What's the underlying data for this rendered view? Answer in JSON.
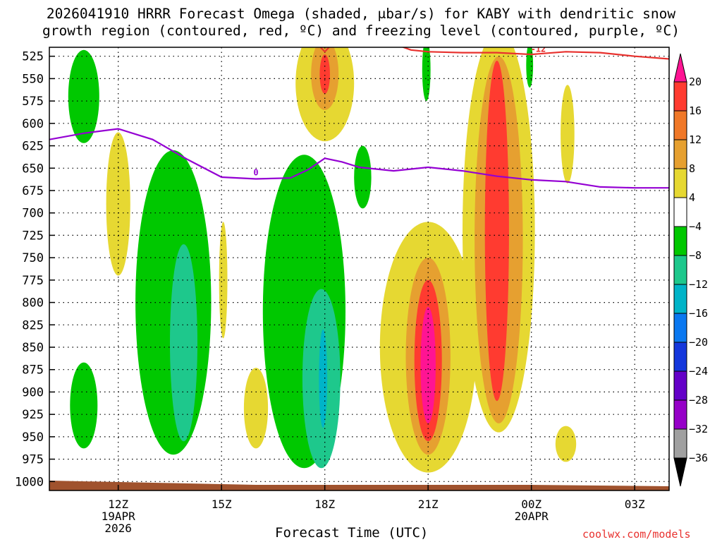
{
  "chart_data": {
    "type": "time-height contour",
    "title_line1": "2026041910 HRRR Forecast Omega (shaded, μbar/s) for KABY with dendritic snow",
    "title_line2": "growth region (contoured, red, ºC) and freezing level (contoured, purple, ºC)",
    "xlabel": "Forecast Time (UTC)",
    "credit": "coolwx.com/models",
    "x_range_hours": [
      10,
      28
    ],
    "y_range_mb": [
      1010,
      515
    ],
    "y_ticks": [
      "525",
      "550",
      "575",
      "600",
      "625",
      "650",
      "675",
      "700",
      "725",
      "750",
      "775",
      "800",
      "825",
      "850",
      "875",
      "900",
      "925",
      "950",
      "975",
      "1000"
    ],
    "x_ticks": [
      {
        "hour": 12,
        "label": "12Z",
        "sub1": "19APR",
        "sub2": "2026"
      },
      {
        "hour": 15,
        "label": "15Z",
        "sub1": "",
        "sub2": ""
      },
      {
        "hour": 18,
        "label": "18Z",
        "sub1": "",
        "sub2": ""
      },
      {
        "hour": 21,
        "label": "21Z",
        "sub1": "",
        "sub2": ""
      },
      {
        "hour": 24,
        "label": "00Z",
        "sub1": "20APR",
        "sub2": ""
      },
      {
        "hour": 27,
        "label": "03Z",
        "sub1": "",
        "sub2": ""
      }
    ],
    "colorbar": {
      "labels": [
        "20",
        "16",
        "12",
        "8",
        "4",
        "−4",
        "−8",
        "−12",
        "−16",
        "−20",
        "−24",
        "−28",
        "−32",
        "−36"
      ],
      "colors": [
        "#ff1493",
        "#ff3b30",
        "#f07828",
        "#e6a030",
        "#e6d832",
        "#ffffff",
        "#00c800",
        "#1ec88c",
        "#00b4c8",
        "#0a78f0",
        "#1437dc",
        "#6400c8",
        "#9600c8",
        "#a0a0a0",
        "#000000"
      ]
    },
    "freezing_level": {
      "label": "0",
      "points": [
        [
          10,
          618
        ],
        [
          11,
          611
        ],
        [
          12,
          606
        ],
        [
          13,
          618
        ],
        [
          14,
          640
        ],
        [
          15,
          660
        ],
        [
          16,
          662
        ],
        [
          17,
          661
        ],
        [
          17.5,
          652
        ],
        [
          18,
          639
        ],
        [
          18.5,
          643
        ],
        [
          19,
          649
        ],
        [
          20,
          653
        ],
        [
          21,
          649
        ],
        [
          22,
          653
        ],
        [
          23,
          659
        ],
        [
          24,
          663
        ],
        [
          25,
          665
        ],
        [
          26,
          671
        ],
        [
          27,
          672
        ],
        [
          28,
          672
        ]
      ]
    },
    "dgz_minus12": {
      "label": "-12",
      "points": [
        [
          20,
          511
        ],
        [
          20.5,
          518
        ],
        [
          21,
          520
        ],
        [
          22,
          521
        ],
        [
          23,
          521
        ],
        [
          24,
          523
        ],
        [
          25,
          520
        ],
        [
          26,
          521
        ],
        [
          27,
          525
        ],
        [
          28,
          528
        ]
      ]
    },
    "omega_regions": [
      {
        "value": -6,
        "center": [
          11.0,
          570
        ],
        "halfwidth_h": 0.45,
        "halfheight_mb": 52
      },
      {
        "value": -6,
        "center": [
          11.0,
          915
        ],
        "halfwidth_h": 0.4,
        "halfheight_mb": 48
      },
      {
        "value": -6,
        "center": [
          13.6,
          800
        ],
        "halfwidth_h": 1.1,
        "halfheight_mb": 170
      },
      {
        "value": -10,
        "center": [
          13.9,
          845
        ],
        "halfwidth_h": 0.4,
        "halfheight_mb": 110
      },
      {
        "value": -6,
        "center": [
          17.4,
          810
        ],
        "halfwidth_h": 1.2,
        "halfheight_mb": 175
      },
      {
        "value": -10,
        "center": [
          17.9,
          885
        ],
        "halfwidth_h": 0.55,
        "halfheight_mb": 100
      },
      {
        "value": -14,
        "center": [
          17.95,
          885
        ],
        "halfwidth_h": 0.12,
        "halfheight_mb": 55
      },
      {
        "value": -6,
        "center": [
          19.1,
          660
        ],
        "halfwidth_h": 0.25,
        "halfheight_mb": 35
      },
      {
        "value": -6,
        "center": [
          20.95,
          540
        ],
        "halfwidth_h": 0.12,
        "halfheight_mb": 35
      },
      {
        "value": -6,
        "center": [
          23.95,
          535
        ],
        "halfwidth_h": 0.1,
        "halfheight_mb": 25
      },
      {
        "value": 6,
        "center": [
          12.0,
          690
        ],
        "halfwidth_h": 0.35,
        "halfheight_mb": 80
      },
      {
        "value": 6,
        "center": [
          15.05,
          775
        ],
        "halfwidth_h": 0.12,
        "halfheight_mb": 65
      },
      {
        "value": 6,
        "center": [
          16.0,
          918
        ],
        "halfwidth_h": 0.35,
        "halfheight_mb": 45
      },
      {
        "value": 6,
        "center": [
          18.0,
          555
        ],
        "halfwidth_h": 0.85,
        "halfheight_mb": 65
      },
      {
        "value": 10,
        "center": [
          18.0,
          545
        ],
        "halfwidth_h": 0.4,
        "halfheight_mb": 40
      },
      {
        "value": 14,
        "center": [
          18.0,
          545
        ],
        "halfwidth_h": 0.15,
        "halfheight_mb": 22
      },
      {
        "value": 6,
        "center": [
          21.0,
          850
        ],
        "halfwidth_h": 1.4,
        "halfheight_mb": 140
      },
      {
        "value": 10,
        "center": [
          21.0,
          860
        ],
        "halfwidth_h": 0.65,
        "halfheight_mb": 110
      },
      {
        "value": 14,
        "center": [
          21.0,
          865
        ],
        "halfwidth_h": 0.4,
        "halfheight_mb": 90
      },
      {
        "value": 18,
        "center": [
          21.0,
          870
        ],
        "halfwidth_h": 0.22,
        "halfheight_mb": 65
      },
      {
        "value": 6,
        "center": [
          23.05,
          720
        ],
        "halfwidth_h": 1.05,
        "halfheight_mb": 225
      },
      {
        "value": 10,
        "center": [
          23.05,
          730
        ],
        "halfwidth_h": 0.7,
        "halfheight_mb": 205
      },
      {
        "value": 14,
        "center": [
          23.0,
          720
        ],
        "halfwidth_h": 0.35,
        "halfheight_mb": 190
      },
      {
        "value": 6,
        "center": [
          25.05,
          612
        ],
        "halfwidth_h": 0.2,
        "halfheight_mb": 55
      },
      {
        "value": 6,
        "center": [
          25.0,
          958
        ],
        "halfwidth_h": 0.3,
        "halfheight_mb": 20
      }
    ],
    "terrain_color": "#a0522d"
  }
}
